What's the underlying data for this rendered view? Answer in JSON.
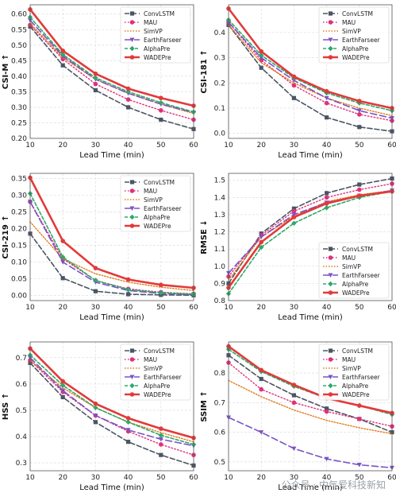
{
  "watermark": "公众号 · 中气爱科技新知",
  "series_style": [
    {
      "name": "ConvLSTM",
      "color": "#4a5563",
      "dash": "6,3",
      "marker": "square",
      "width": 1.6
    },
    {
      "name": "MAU",
      "color": "#e0307a",
      "dash": "1.5,2.5",
      "marker": "circle",
      "width": 1.4
    },
    {
      "name": "SimVP",
      "color": "#e07b1a",
      "dash": "1.5,2",
      "marker": "none",
      "width": 1.4
    },
    {
      "name": "EarthFarseer",
      "color": "#7b52c4",
      "dash": "8,4",
      "marker": "tri",
      "width": 1.6
    },
    {
      "name": "AlphaPre",
      "color": "#2ea86a",
      "dash": "4,2.5",
      "marker": "diamond",
      "width": 1.6
    },
    {
      "name": "WADEPre",
      "color": "#e23a3a",
      "dash": "",
      "marker": "circle",
      "width": 2.6
    }
  ],
  "chart_data": [
    {
      "type": "line",
      "ylabel": "CSI-M ↑",
      "xlabel": "Lead Time (min)",
      "x": [
        10,
        20,
        30,
        40,
        50,
        60
      ],
      "xlim": [
        10,
        60
      ],
      "ylim": [
        0.2,
        0.63
      ],
      "yticks": [
        0.2,
        0.25,
        0.3,
        0.35,
        0.4,
        0.45,
        0.5,
        0.55,
        0.6
      ],
      "grid": true,
      "legend": "top-right",
      "series": [
        {
          "name": "ConvLSTM",
          "values": [
            0.56,
            0.435,
            0.355,
            0.3,
            0.26,
            0.23
          ]
        },
        {
          "name": "MAU",
          "values": [
            0.565,
            0.455,
            0.375,
            0.325,
            0.29,
            0.26
          ]
        },
        {
          "name": "SimVP",
          "values": [
            0.57,
            0.46,
            0.39,
            0.345,
            0.31,
            0.28
          ]
        },
        {
          "name": "EarthFarseer",
          "values": [
            0.58,
            0.465,
            0.39,
            0.345,
            0.31,
            0.283
          ]
        },
        {
          "name": "AlphaPre",
          "values": [
            0.59,
            0.47,
            0.395,
            0.35,
            0.315,
            0.285
          ]
        },
        {
          "name": "WADEPre",
          "values": [
            0.615,
            0.482,
            0.408,
            0.36,
            0.33,
            0.305
          ]
        }
      ]
    },
    {
      "type": "line",
      "ylabel": "CSI-181 ↑",
      "xlabel": "Lead Time (min)",
      "x": [
        10,
        20,
        30,
        40,
        50,
        60
      ],
      "xlim": [
        10,
        60
      ],
      "ylim": [
        -0.02,
        0.51
      ],
      "yticks": [
        0.0,
        0.1,
        0.2,
        0.3,
        0.4
      ],
      "grid": true,
      "legend": "top-right",
      "series": [
        {
          "name": "ConvLSTM",
          "values": [
            0.43,
            0.26,
            0.14,
            0.063,
            0.025,
            0.008
          ]
        },
        {
          "name": "MAU",
          "values": [
            0.44,
            0.29,
            0.19,
            0.12,
            0.075,
            0.05
          ]
        },
        {
          "name": "SimVP",
          "values": [
            0.43,
            0.28,
            0.2,
            0.14,
            0.1,
            0.07
          ]
        },
        {
          "name": "EarthFarseer",
          "values": [
            0.44,
            0.3,
            0.21,
            0.14,
            0.09,
            0.06
          ]
        },
        {
          "name": "AlphaPre",
          "values": [
            0.45,
            0.31,
            0.22,
            0.16,
            0.12,
            0.09
          ]
        },
        {
          "name": "WADEPre",
          "values": [
            0.495,
            0.325,
            0.225,
            0.167,
            0.128,
            0.1
          ]
        }
      ]
    },
    {
      "type": "line",
      "ylabel": "CSI-219 ↑",
      "xlabel": "Lead Time (min)",
      "x": [
        10,
        20,
        30,
        40,
        50,
        60
      ],
      "xlim": [
        10,
        60
      ],
      "ylim": [
        -0.015,
        0.365
      ],
      "yticks": [
        0.0,
        0.05,
        0.1,
        0.15,
        0.2,
        0.25,
        0.3,
        0.35
      ],
      "grid": true,
      "legend": "top-right",
      "series": [
        {
          "name": "ConvLSTM",
          "values": [
            0.185,
            0.052,
            0.013,
            0.004,
            0.002,
            0.001
          ]
        },
        {
          "name": "MAU",
          "values": [
            0.28,
            0.11,
            0.045,
            0.02,
            0.01,
            0.005
          ]
        },
        {
          "name": "SimVP",
          "values": [
            0.22,
            0.11,
            0.065,
            0.04,
            0.025,
            0.015
          ]
        },
        {
          "name": "EarthFarseer",
          "values": [
            0.28,
            0.1,
            0.04,
            0.015,
            0.006,
            0.003
          ]
        },
        {
          "name": "AlphaPre",
          "values": [
            0.305,
            0.115,
            0.045,
            0.018,
            0.008,
            0.004
          ]
        },
        {
          "name": "WADEPre",
          "values": [
            0.352,
            0.163,
            0.082,
            0.048,
            0.032,
            0.023
          ]
        }
      ]
    },
    {
      "type": "line",
      "ylabel": "RMSE ↓",
      "xlabel": "Lead Time (min)",
      "x": [
        10,
        20,
        30,
        40,
        50,
        60
      ],
      "xlim": [
        10,
        60
      ],
      "ylim": [
        0.8,
        1.54
      ],
      "yticks": [
        0.8,
        0.9,
        1.0,
        1.1,
        1.2,
        1.3,
        1.4,
        1.5
      ],
      "grid": true,
      "legend": "lower-right",
      "series": [
        {
          "name": "ConvLSTM",
          "values": [
            0.9,
            1.19,
            1.335,
            1.425,
            1.475,
            1.51
          ]
        },
        {
          "name": "MAU",
          "values": [
            0.94,
            1.18,
            1.32,
            1.4,
            1.445,
            1.48
          ]
        },
        {
          "name": "SimVP",
          "values": [
            0.92,
            1.17,
            1.29,
            1.375,
            1.415,
            1.44
          ]
        },
        {
          "name": "EarthFarseer",
          "values": [
            0.96,
            1.17,
            1.3,
            1.37,
            1.41,
            1.44
          ]
        },
        {
          "name": "AlphaPre",
          "values": [
            0.84,
            1.11,
            1.25,
            1.34,
            1.4,
            1.435
          ]
        },
        {
          "name": "WADEPre",
          "values": [
            0.875,
            1.14,
            1.285,
            1.365,
            1.41,
            1.435
          ]
        }
      ]
    },
    {
      "type": "line",
      "ylabel": "HSS ↑",
      "xlabel": "Lead Time (min)",
      "x": [
        10,
        20,
        30,
        40,
        50,
        60
      ],
      "xlim": [
        10,
        60
      ],
      "ylim": [
        0.27,
        0.76
      ],
      "yticks": [
        0.3,
        0.4,
        0.5,
        0.6,
        0.7
      ],
      "grid": true,
      "legend": "top-right",
      "series": [
        {
          "name": "ConvLSTM",
          "values": [
            0.68,
            0.55,
            0.455,
            0.38,
            0.33,
            0.29
          ]
        },
        {
          "name": "MAU",
          "values": [
            0.69,
            0.57,
            0.48,
            0.42,
            0.37,
            0.33
          ]
        },
        {
          "name": "SimVP",
          "values": [
            0.69,
            0.585,
            0.51,
            0.455,
            0.415,
            0.38
          ]
        },
        {
          "name": "EarthFarseer",
          "values": [
            0.7,
            0.575,
            0.48,
            0.425,
            0.39,
            0.365
          ]
        },
        {
          "name": "AlphaPre",
          "values": [
            0.71,
            0.595,
            0.51,
            0.455,
            0.405,
            0.37
          ]
        },
        {
          "name": "WADEPre",
          "values": [
            0.735,
            0.61,
            0.525,
            0.47,
            0.43,
            0.395
          ]
        }
      ]
    },
    {
      "type": "line",
      "ylabel": "SSIM ↑",
      "xlabel": "Lead Time (min)",
      "x": [
        10,
        20,
        30,
        40,
        50,
        60
      ],
      "xlim": [
        10,
        60
      ],
      "ylim": [
        0.47,
        0.905
      ],
      "yticks": [
        0.5,
        0.6,
        0.7,
        0.8
      ],
      "grid": true,
      "legend": "top-right",
      "series": [
        {
          "name": "ConvLSTM",
          "values": [
            0.86,
            0.78,
            0.725,
            0.68,
            0.645,
            0.6
          ]
        },
        {
          "name": "MAU",
          "values": [
            0.835,
            0.745,
            0.7,
            0.67,
            0.645,
            0.62
          ]
        },
        {
          "name": "SimVP",
          "values": [
            0.775,
            0.72,
            0.675,
            0.64,
            0.615,
            0.595
          ]
        },
        {
          "name": "EarthFarseer",
          "values": [
            0.65,
            0.6,
            0.545,
            0.51,
            0.49,
            0.48
          ]
        },
        {
          "name": "AlphaPre",
          "values": [
            0.88,
            0.805,
            0.755,
            0.715,
            0.69,
            0.66
          ]
        },
        {
          "name": "WADEPre",
          "values": [
            0.89,
            0.81,
            0.76,
            0.715,
            0.69,
            0.665
          ]
        }
      ]
    }
  ]
}
